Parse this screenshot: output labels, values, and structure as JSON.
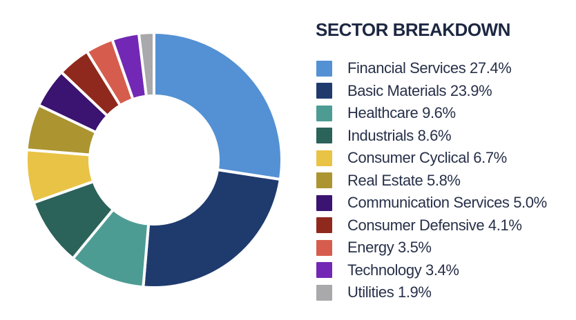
{
  "header": {
    "title": "SECTOR BREAKDOWN"
  },
  "text_colors": {
    "title": "#1d2742",
    "legend": "#273049"
  },
  "chart_data": {
    "type": "pie",
    "variant": "donut",
    "title": "SECTOR BREAKDOWN",
    "start_angle_deg": 0,
    "direction": "clockwise",
    "inner_radius_ratio": 0.5,
    "gap_color": "#ffffff",
    "legend_position": "right",
    "legend_label_format": "{label} {pct}%",
    "slices": [
      {
        "label": "Financial Services",
        "pct": "27.4",
        "color": "#5491d4"
      },
      {
        "label": "Basic Materials",
        "pct": "23.9",
        "color": "#1f3b6e"
      },
      {
        "label": "Healthcare",
        "pct": "9.6",
        "color": "#4d9c93"
      },
      {
        "label": "Industrials",
        "pct": "8.6",
        "color": "#2b625a"
      },
      {
        "label": "Consumer Cyclical",
        "pct": "6.7",
        "color": "#e9c345"
      },
      {
        "label": "Real Estate",
        "pct": "5.8",
        "color": "#ac9431"
      },
      {
        "label": "Communication Services",
        "pct": "5.0",
        "color": "#3b1371"
      },
      {
        "label": "Consumer Defensive",
        "pct": "4.1",
        "color": "#90291d"
      },
      {
        "label": "Energy",
        "pct": "3.5",
        "color": "#d65d4d"
      },
      {
        "label": "Technology",
        "pct": "3.4",
        "color": "#7228b4"
      },
      {
        "label": "Utilities",
        "pct": "1.9",
        "color": "#a9a9ac"
      }
    ]
  }
}
